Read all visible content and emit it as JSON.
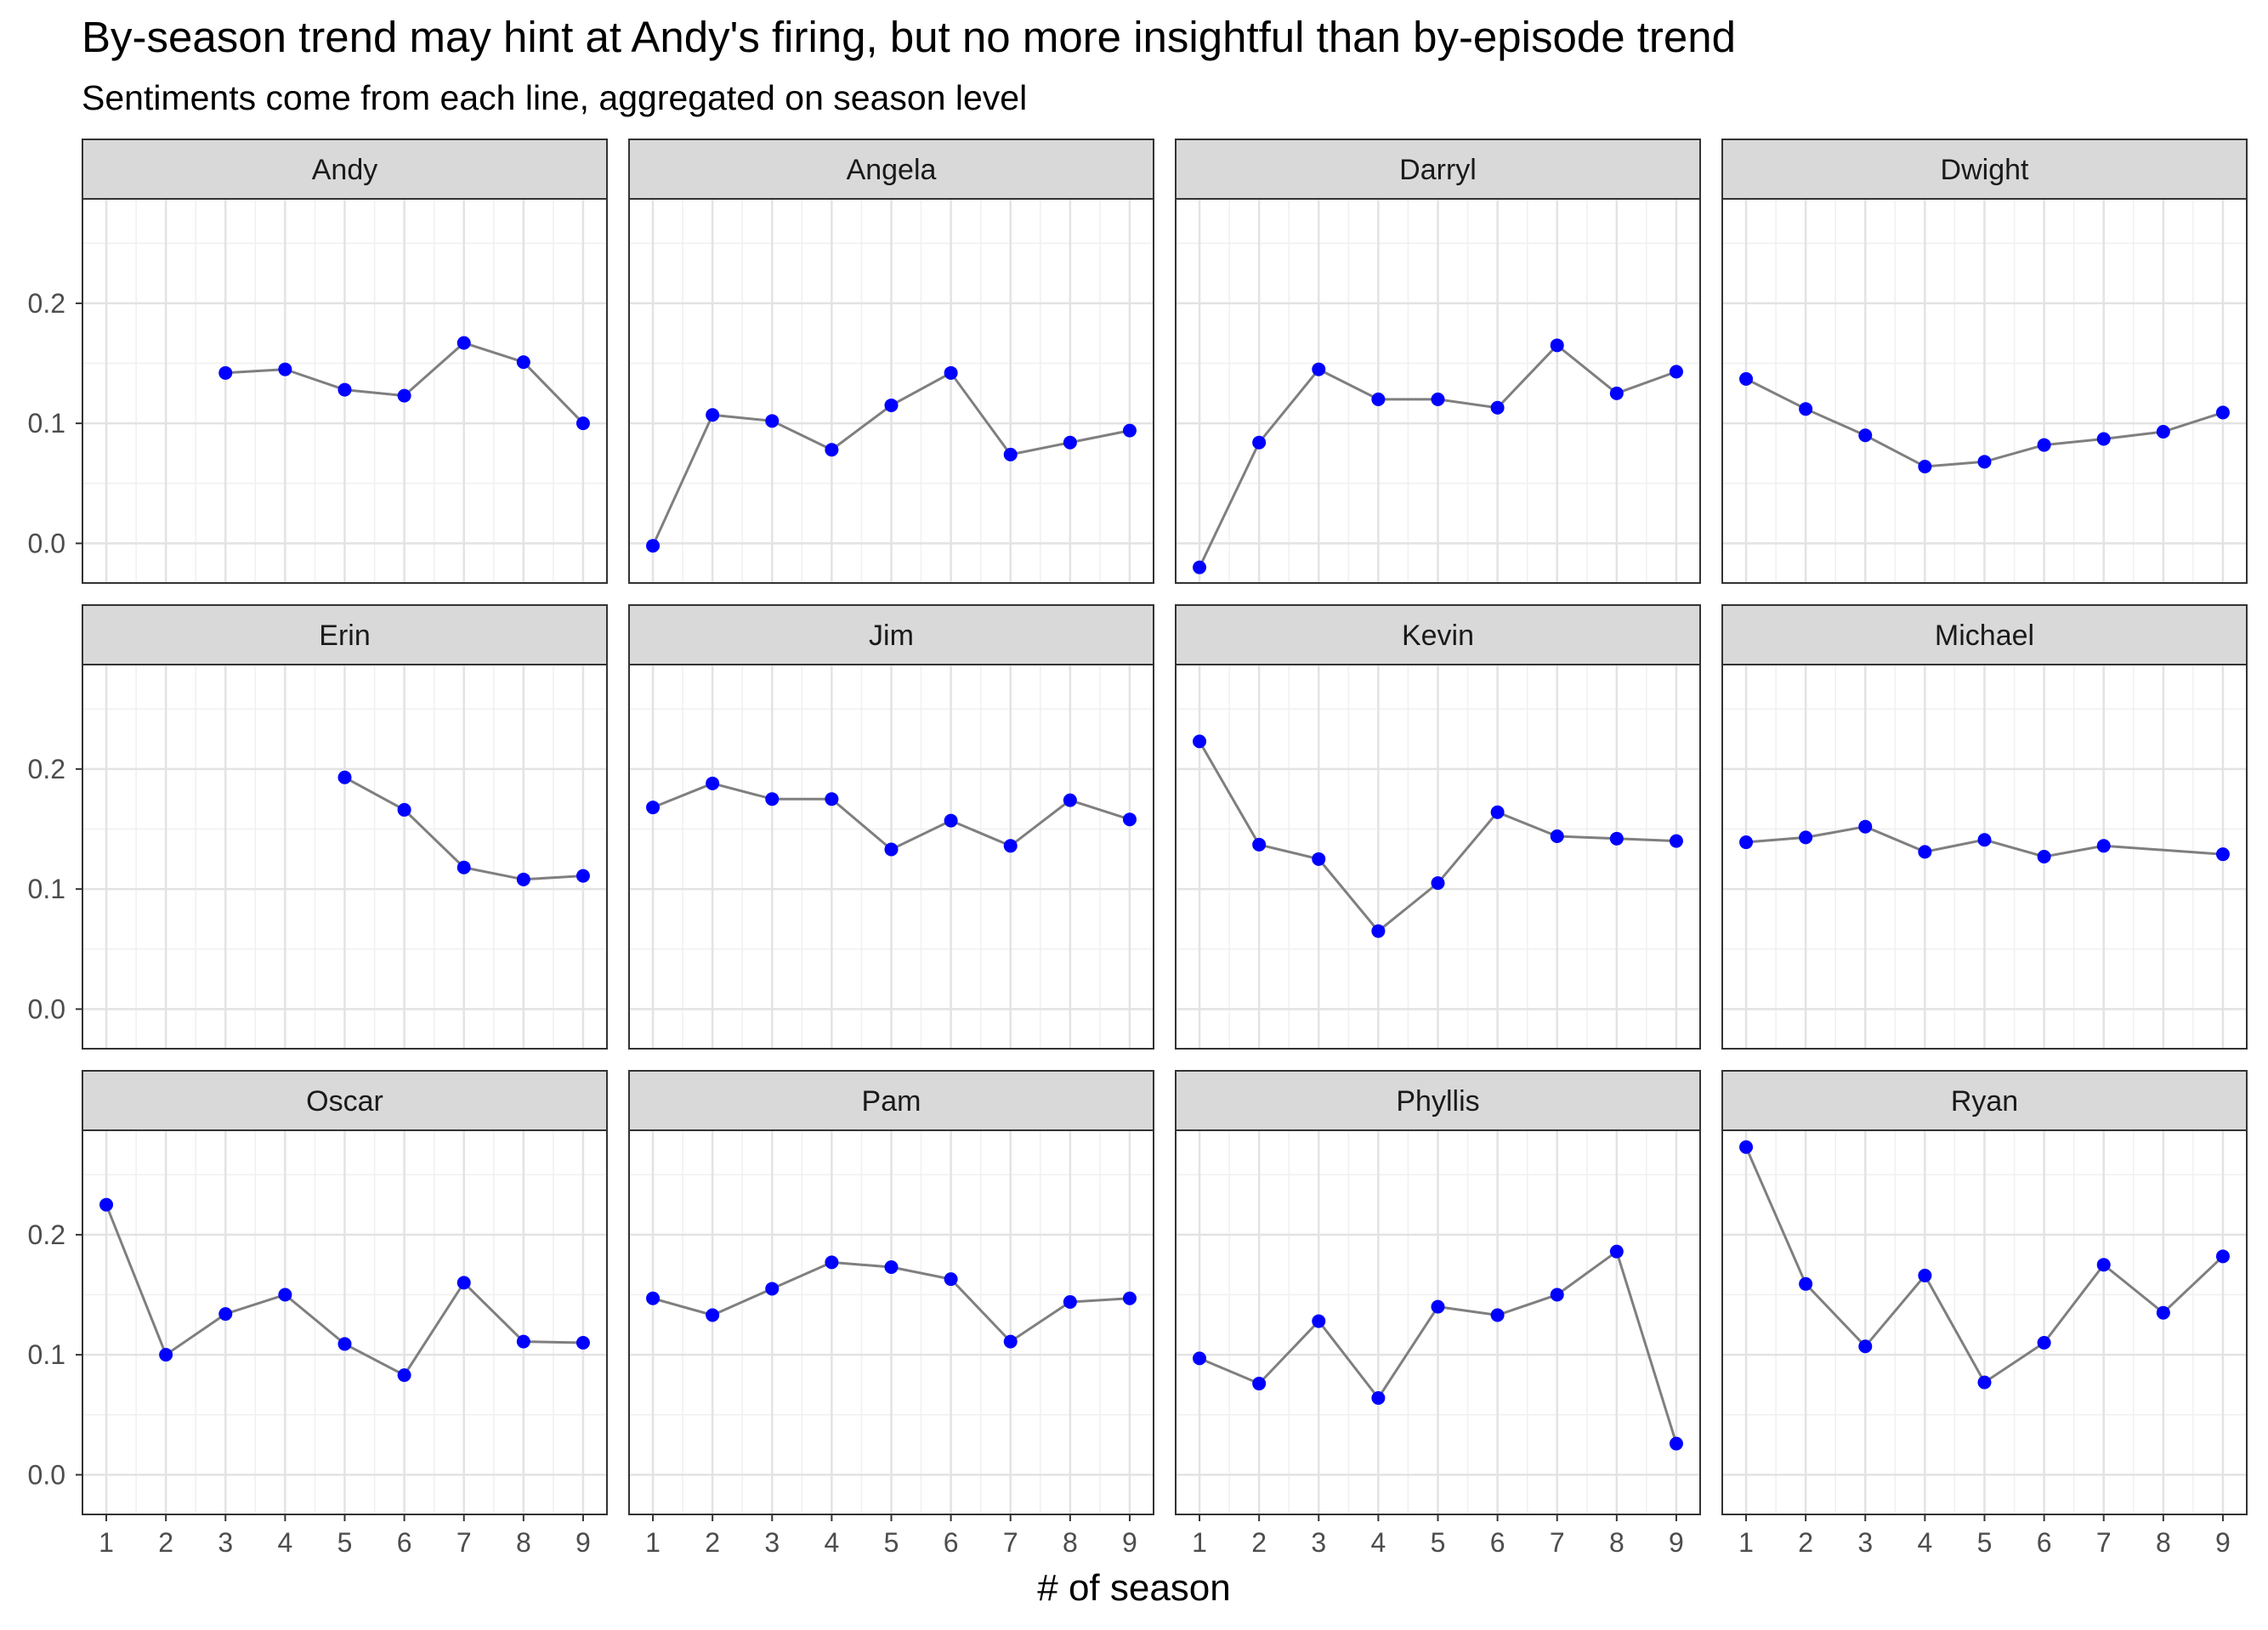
{
  "chart_data": {
    "type": "line",
    "title": "By-season trend may hint at Andy's firing, but no more insightful than by-episode trend",
    "subtitle": "Sentiments come from each line, aggregated on season level",
    "xlabel": "# of season",
    "ylabel": "",
    "x": [
      1,
      2,
      3,
      4,
      5,
      6,
      7,
      8,
      9
    ],
    "x_ticks": [
      "1",
      "2",
      "3",
      "4",
      "5",
      "6",
      "7",
      "8",
      "9"
    ],
    "y_ticks": [
      "0.0",
      "0.1",
      "0.2"
    ],
    "ylim": [
      -0.033,
      0.287
    ],
    "xlim": [
      0.6,
      9.4
    ],
    "grid": true,
    "line_color": "#7f7f7f",
    "point_color": "#0000ff",
    "strip_color": "#d9d9d9",
    "facets": [
      {
        "name": "Andy",
        "values": [
          null,
          null,
          0.142,
          0.145,
          0.128,
          0.123,
          0.167,
          0.151,
          0.1
        ]
      },
      {
        "name": "Angela",
        "values": [
          -0.002,
          0.107,
          0.102,
          0.078,
          0.115,
          0.142,
          0.074,
          0.084,
          0.094
        ]
      },
      {
        "name": "Darryl",
        "values": [
          -0.02,
          0.084,
          0.145,
          0.12,
          0.12,
          0.113,
          0.165,
          0.125,
          0.143
        ]
      },
      {
        "name": "Dwight",
        "values": [
          0.137,
          0.112,
          0.09,
          0.064,
          0.068,
          0.082,
          0.087,
          0.093,
          0.109
        ]
      },
      {
        "name": "Erin",
        "values": [
          null,
          null,
          null,
          null,
          0.193,
          0.166,
          0.118,
          0.108,
          0.111
        ]
      },
      {
        "name": "Jim",
        "values": [
          0.168,
          0.188,
          0.175,
          0.175,
          0.133,
          0.157,
          0.136,
          0.174,
          0.158
        ]
      },
      {
        "name": "Kevin",
        "values": [
          0.223,
          0.137,
          0.125,
          0.065,
          0.105,
          0.164,
          0.144,
          0.142,
          0.14
        ]
      },
      {
        "name": "Michael",
        "values": [
          0.139,
          0.143,
          0.152,
          0.131,
          0.141,
          0.127,
          0.136,
          null,
          0.129
        ]
      },
      {
        "name": "Oscar",
        "values": [
          0.225,
          0.1,
          0.134,
          0.15,
          0.109,
          0.083,
          0.16,
          0.111,
          0.11
        ]
      },
      {
        "name": "Pam",
        "values": [
          0.147,
          0.133,
          0.155,
          0.177,
          0.173,
          0.163,
          0.111,
          0.144,
          0.147
        ]
      },
      {
        "name": "Phyllis",
        "values": [
          0.097,
          0.076,
          0.128,
          0.064,
          0.14,
          0.133,
          0.15,
          0.186,
          0.026
        ]
      },
      {
        "name": "Ryan",
        "values": [
          0.273,
          0.159,
          0.107,
          0.166,
          0.077,
          0.11,
          0.175,
          0.135,
          0.182
        ]
      }
    ]
  }
}
